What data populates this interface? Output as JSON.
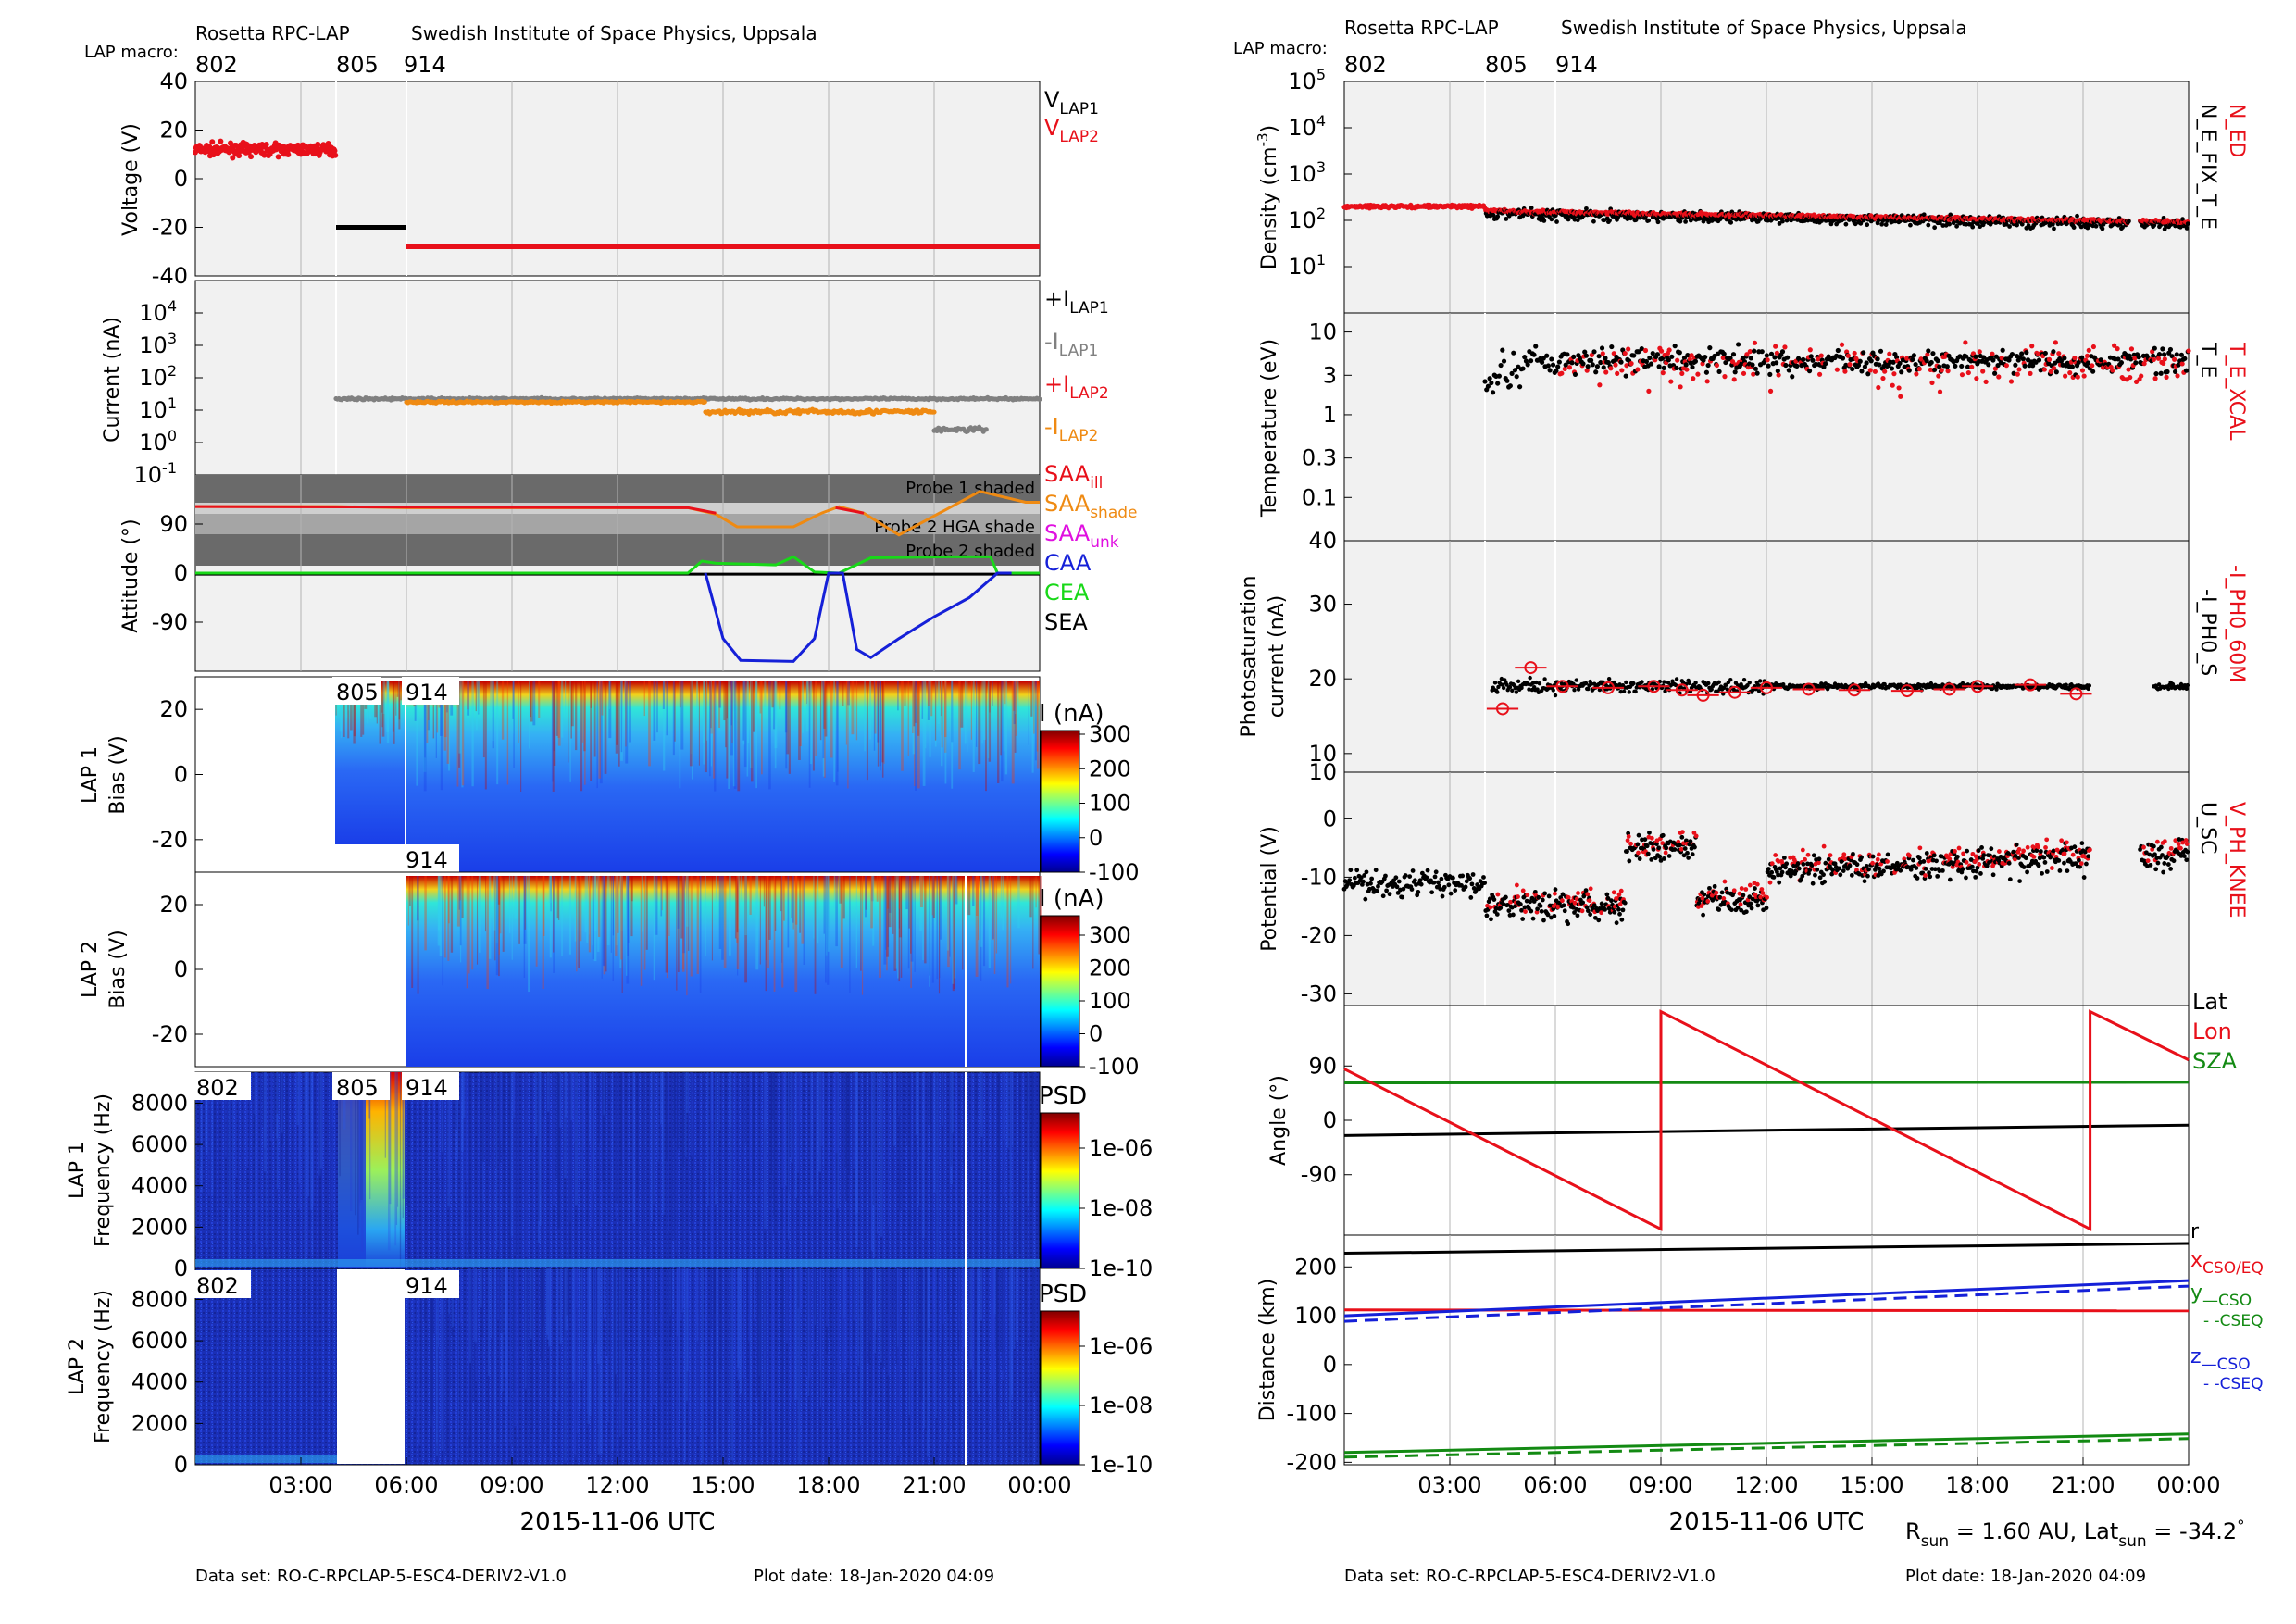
{
  "header": {
    "instrument": "Rosetta RPC-LAP",
    "institute": "Swedish Institute of Space Physics, Uppsala",
    "macro_label": "LAP macro:",
    "macros": [
      "802",
      "805",
      "914"
    ]
  },
  "footer": {
    "dataset": "Data set: RO-C-RPCLAP-5-ESC4-DERIV2-V1.0",
    "plot_date": "Plot date: 18-Jan-2020 04:09",
    "rsun_text": "R",
    "rsun_sub": "sun",
    "rsun_val": " = 1.60 AU, Lat",
    "lat_sub": "sun",
    "lat_val": " = -34.2",
    "deg": "°"
  },
  "time_axis": {
    "label": "2015-11-06 UTC",
    "start_hours": 0,
    "end_hours": 24,
    "ticks": [
      "03:00",
      "06:00",
      "09:00",
      "12:00",
      "15:00",
      "18:00",
      "21:00",
      "00:00"
    ],
    "tick_hours": [
      3,
      6,
      9,
      12,
      15,
      18,
      21,
      24
    ],
    "macro_change_hours": [
      0,
      4.0,
      6.0
    ]
  },
  "colors": {
    "red": "#e8101a",
    "black": "#000000",
    "gray": "#808080",
    "orange": "#ef8a12",
    "magenta": "#e010e0",
    "blue": "#1520d8",
    "green": "#18d818",
    "dkgreen": "#138a13",
    "panel_bg": "#f1f1f1",
    "shade_dark": "#6a6a6a",
    "shade_mid": "#a5a5a5",
    "shade_light": "#cfcfcf"
  },
  "left_panels": {
    "voltage": {
      "ylabel": "Voltage (V)",
      "yticks": [
        "40",
        "20",
        "0",
        "-20",
        "-40"
      ],
      "ytick_values": [
        40,
        20,
        0,
        -20,
        -40
      ],
      "ylim": [
        -40,
        40
      ],
      "legend": [
        {
          "main": "V",
          "sub": "LAP1",
          "color": "#000000"
        },
        {
          "main": "V",
          "sub": "LAP2",
          "color": "#e8101a"
        }
      ],
      "segments": [
        {
          "series": "V_LAP2",
          "from": 0.0,
          "to": 4.0,
          "value": 12,
          "noisy": true
        },
        {
          "series": "V_LAP1",
          "from": 4.0,
          "to": 6.0,
          "value": -20
        },
        {
          "series": "V_LAP2",
          "from": 6.0,
          "to": 24.0,
          "value": -28
        }
      ]
    },
    "current": {
      "ylabel": "Current (nA)",
      "yticks": [
        "10",
        "10",
        "10",
        "10",
        "10",
        "10"
      ],
      "ytick_exp": [
        "4",
        "3",
        "2",
        "1",
        "0",
        "-1"
      ],
      "ytick_values": [
        4,
        3,
        2,
        1,
        0,
        -1
      ],
      "ylim_log10": [
        -1,
        5
      ],
      "legend": [
        {
          "main": "+I",
          "sub": "LAP1",
          "color": "#000000"
        },
        {
          "main": "-I",
          "sub": "LAP1",
          "color": "#808080"
        },
        {
          "main": "+I",
          "sub": "LAP2",
          "color": "#e8101a"
        },
        {
          "main": "-I",
          "sub": "LAP2",
          "color": "#ef8a12"
        }
      ],
      "series": [
        {
          "name": "-I_LAP1",
          "from": 4.0,
          "to": 24.0,
          "log10": 1.35
        },
        {
          "name": "-I_LAP2",
          "from": 6.0,
          "to": 14.5,
          "log10": 1.25
        },
        {
          "name": "-I_LAP2",
          "from": 14.5,
          "to": 18.0,
          "log10": 0.95
        },
        {
          "name": "-I_LAP2",
          "from": 18.0,
          "to": 21.0,
          "log10": 0.95
        },
        {
          "name": "-I_LAP1",
          "from": 21.0,
          "to": 22.5,
          "log10": 0.4
        }
      ]
    },
    "attitude": {
      "ylabel": "Attitude (°)",
      "yticks": [
        "90",
        "0",
        "-90"
      ],
      "ytick_values": [
        90,
        0,
        -90
      ],
      "ylim": [
        -180,
        180
      ],
      "shade_labels": [
        "Probe 1 shaded",
        "Probe 2 HGA shade",
        "Probe 2 shaded"
      ],
      "legend": [
        {
          "main": "SAA",
          "sub": "ill",
          "color": "#e8101a"
        },
        {
          "main": "SAA",
          "sub": "shade",
          "color": "#ef8a12"
        },
        {
          "main": "SAA",
          "sub": "unk",
          "color": "#e010e0"
        },
        {
          "main": "CAA",
          "sub": "",
          "color": "#1520d8"
        },
        {
          "main": "CEA",
          "sub": "",
          "color": "#18d818"
        },
        {
          "main": "SEA",
          "sub": "",
          "color": "#000000"
        }
      ]
    },
    "lap1_bias": {
      "ylabel1": "LAP 1",
      "ylabel2": "Bias (V)",
      "yticks": [
        "20",
        "0",
        "-20"
      ],
      "ytick_values": [
        20,
        0,
        -20
      ],
      "ylim": [
        -30,
        30
      ],
      "cbar_title": "I (nA)",
      "cbar_ticks": [
        "300",
        "200",
        "100",
        "0",
        "-100"
      ],
      "tags": [
        "805",
        "914",
        "914"
      ]
    },
    "lap2_bias": {
      "ylabel1": "LAP 2",
      "ylabel2": "Bias (V)",
      "yticks": [
        "20",
        "0",
        "-20"
      ],
      "ytick_values": [
        20,
        0,
        -20
      ],
      "ylim": [
        -30,
        30
      ],
      "cbar_title": "I (nA)",
      "cbar_ticks": [
        "300",
        "200",
        "100",
        "0",
        "-100"
      ]
    },
    "lap1_freq": {
      "ylabel1": "LAP 1",
      "ylabel2": "Frequency (Hz)",
      "yticks": [
        "8000",
        "6000",
        "4000",
        "2000",
        "0"
      ],
      "ytick_values": [
        8000,
        6000,
        4000,
        2000,
        0
      ],
      "ylim": [
        0,
        9500
      ],
      "cbar_title": "PSD",
      "cbar_ticks": [
        "1e-06",
        "1e-08",
        "1e-10"
      ],
      "tags": [
        "802",
        "805",
        "914"
      ]
    },
    "lap2_freq": {
      "ylabel1": "LAP 2",
      "ylabel2": "Frequency (Hz)",
      "yticks": [
        "8000",
        "6000",
        "4000",
        "2000",
        "0"
      ],
      "ytick_values": [
        8000,
        6000,
        4000,
        2000,
        0
      ],
      "ylim": [
        0,
        9500
      ],
      "cbar_title": "PSD",
      "cbar_ticks": [
        "1e-06",
        "1e-08",
        "1e-10"
      ],
      "tags": [
        "802",
        "914"
      ]
    }
  },
  "right_panels": {
    "density": {
      "ylabel": "Density (cm",
      "ylabel_sup": "-3",
      "ylabel_end": ")",
      "yticks": [
        "10",
        "10",
        "10",
        "10",
        "10"
      ],
      "ytick_exp": [
        "5",
        "4",
        "3",
        "2",
        "1"
      ],
      "ytick_values": [
        5,
        4,
        3,
        2,
        1
      ],
      "ylim_log10": [
        0,
        5
      ],
      "legend_right": [
        {
          "text": "N_ED",
          "color": "#e8101a"
        },
        {
          "text": "N_E_FIX_T_E",
          "color": "#000000"
        }
      ]
    },
    "temperature": {
      "ylabel": "Temperature (eV)",
      "yticks": [
        "10",
        "3",
        "1",
        "0.3",
        "0.1"
      ],
      "ytick_values": [
        10,
        3,
        1,
        0.3,
        0.1
      ],
      "bottom_tick": "40",
      "legend_right": [
        {
          "text": "T_E_XCAL",
          "color": "#e8101a"
        },
        {
          "text": "T_E",
          "color": "#000000"
        }
      ]
    },
    "photo": {
      "ylabel1": "Photosaturation",
      "ylabel2": "current (nA)",
      "yticks": [
        "30",
        "20",
        "10"
      ],
      "ytick_values": [
        30,
        20,
        10
      ],
      "ylim": [
        10,
        40
      ],
      "bottom_tick": "10",
      "legend_right": [
        {
          "text": "-I_PH0_60M",
          "color": "#e8101a"
        },
        {
          "text": "-I_PH0_S",
          "color": "#000000"
        }
      ]
    },
    "potential": {
      "ylabel": "Potential (V)",
      "yticks": [
        "0",
        "-10",
        "-20",
        "-30"
      ],
      "ytick_values": [
        0,
        -10,
        -20,
        -30
      ],
      "ylim": [
        -32,
        8
      ],
      "legend_right": [
        {
          "text": "V_PH_KNEE",
          "color": "#e8101a"
        },
        {
          "text": "U_SC",
          "color": "#000000"
        }
      ]
    },
    "angle": {
      "ylabel": "Angle (°)",
      "yticks": [
        "90",
        "0",
        "-90"
      ],
      "ytick_values": [
        90,
        0,
        -90
      ],
      "ylim": [
        -190,
        190
      ],
      "legend": [
        {
          "text": "Lat",
          "color": "#000000"
        },
        {
          "text": "Lon",
          "color": "#e8101a"
        },
        {
          "text": "SZA",
          "color": "#138a13"
        }
      ],
      "lat": [
        [
          0,
          -25
        ],
        [
          24,
          -8
        ]
      ],
      "sza": [
        [
          0,
          62
        ],
        [
          24,
          63
        ]
      ],
      "lon": [
        [
          0,
          85
        ],
        [
          9.0,
          -180
        ],
        [
          9.0,
          180
        ],
        [
          21.2,
          -180
        ],
        [
          21.2,
          180
        ],
        [
          24,
          100
        ]
      ]
    },
    "distance": {
      "ylabel": "Distance (km)",
      "yticks": [
        "200",
        "100",
        "0",
        "-100",
        "-200"
      ],
      "ytick_values": [
        200,
        100,
        0,
        -100,
        -200
      ],
      "ylim": [
        -205,
        265
      ],
      "legend": [
        {
          "main": "r",
          "sub": "",
          "color": "#000000"
        },
        {
          "main": "x",
          "sub": "CSO/EQ",
          "color": "#e8101a"
        },
        {
          "main": "y",
          "sub": "—CSO",
          "color": "#138a13"
        },
        {
          "main": "",
          "sub": "- -CSEQ",
          "color": "#138a13"
        },
        {
          "main": "z",
          "sub": "—CSO",
          "color": "#1520d8"
        },
        {
          "main": "",
          "sub": "- -CSEQ",
          "color": "#1520d8"
        }
      ],
      "r": [
        [
          0,
          228
        ],
        [
          24,
          248
        ]
      ],
      "x": [
        [
          0,
          112
        ],
        [
          24,
          110
        ]
      ],
      "y": [
        [
          0,
          -180
        ],
        [
          24,
          -142
        ]
      ],
      "z": [
        [
          0,
          100
        ],
        [
          24,
          172
        ]
      ]
    }
  }
}
